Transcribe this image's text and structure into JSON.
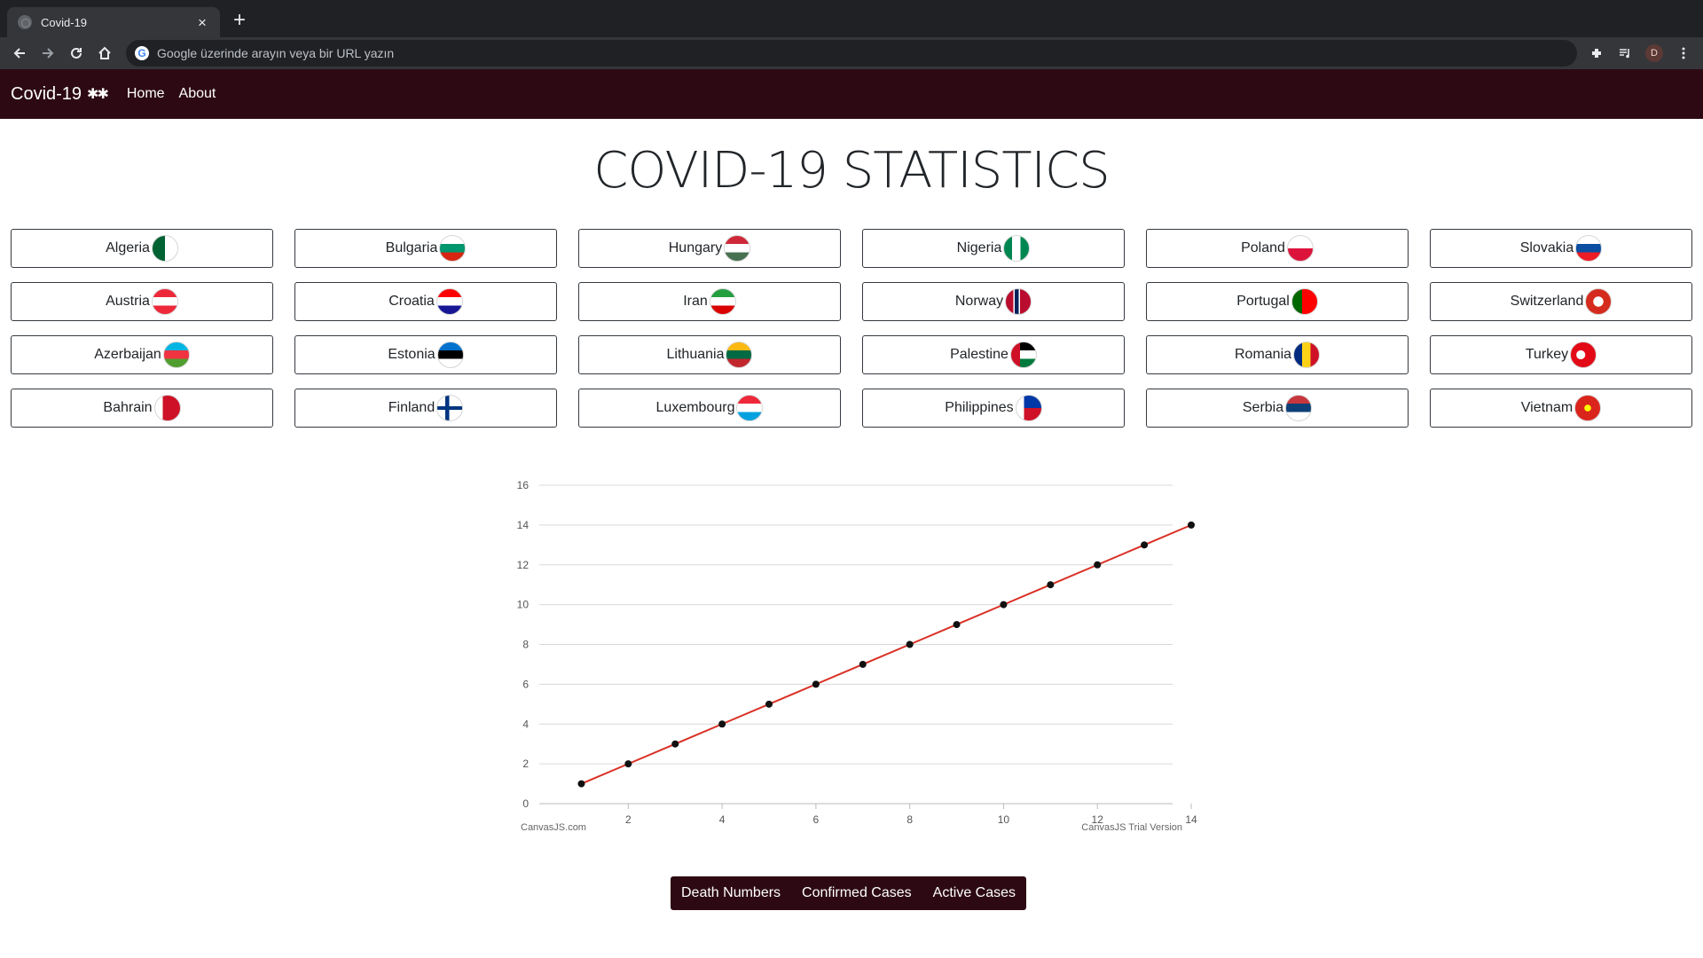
{
  "browser": {
    "tab_title": "Covid-19",
    "omnibox_placeholder": "Google üzerinde arayın veya bir URL yazın",
    "profile_initial": "D"
  },
  "site": {
    "brand": "Covid-19",
    "brand_icon": "✱✱",
    "nav": {
      "home": "Home",
      "about": "About"
    },
    "title": "COVID-19 STATISTICS"
  },
  "countries": [
    {
      "name": "Algeria",
      "flag_gradient": "linear-gradient(90deg,#006233 50%,#ffffff 50%)"
    },
    {
      "name": "Bulgaria",
      "flag_gradient": "linear-gradient(180deg,#ffffff 33%,#00966e 33%,#00966e 66%,#d62612 66%)"
    },
    {
      "name": "Hungary",
      "flag_gradient": "linear-gradient(180deg,#ce2939 33%,#ffffff 33%,#ffffff 66%,#477050 66%)"
    },
    {
      "name": "Nigeria",
      "flag_gradient": "linear-gradient(90deg,#008751 33%,#ffffff 33%,#ffffff 66%,#008751 66%)"
    },
    {
      "name": "Poland",
      "flag_gradient": "linear-gradient(180deg,#ffffff 50%,#dc143c 50%)"
    },
    {
      "name": "Slovakia",
      "flag_gradient": "linear-gradient(180deg,#ffffff 33%,#0b4ea2 33%,#0b4ea2 66%,#ee1c25 66%)"
    },
    {
      "name": "Austria",
      "flag_gradient": "linear-gradient(180deg,#ed2939 33%,#ffffff 33%,#ffffff 66%,#ed2939 66%)"
    },
    {
      "name": "Croatia",
      "flag_gradient": "linear-gradient(180deg,#ff0000 33%,#ffffff 33%,#ffffff 66%,#171796 66%)"
    },
    {
      "name": "Iran",
      "flag_gradient": "linear-gradient(180deg,#239f40 33%,#ffffff 33%,#ffffff 66%,#da0000 66%)"
    },
    {
      "name": "Norway",
      "flag_gradient": "linear-gradient(90deg,#ba0c2f 30%,#ffffff 30%,#ffffff 36%,#00205b 36%,#00205b 52%,#ffffff 52%,#ffffff 58%,#ba0c2f 58%)"
    },
    {
      "name": "Portugal",
      "flag_gradient": "linear-gradient(90deg,#006600 40%,#ff0000 40%)"
    },
    {
      "name": "Switzerland",
      "flag_gradient": "radial-gradient(circle,#ffffff 28%,#d52b1e 30%)"
    },
    {
      "name": "Azerbaijan",
      "flag_gradient": "linear-gradient(180deg,#00b5e2 33%,#ef3340 33%,#ef3340 66%,#509e2f 66%)"
    },
    {
      "name": "Estonia",
      "flag_gradient": "linear-gradient(180deg,#0072ce 33%,#000000 33%,#000000 66%,#ffffff 66%)"
    },
    {
      "name": "Lithuania",
      "flag_gradient": "linear-gradient(180deg,#fdb913 33%,#006a44 33%,#006a44 66%,#c1272d 66%)"
    },
    {
      "name": "Palestine",
      "flag_gradient": "linear-gradient(90deg,#ce1126 35%,transparent 35%),linear-gradient(180deg,#000000 33%,#ffffff 33%,#ffffff 66%,#007a3d 66%)"
    },
    {
      "name": "Romania",
      "flag_gradient": "linear-gradient(90deg,#002b7f 33%,#fcd116 33%,#fcd116 66%,#ce1126 66%)"
    },
    {
      "name": "Turkey",
      "flag_gradient": "radial-gradient(circle at 40% 50%,#ffffff 22%,#e30a17 24%)"
    },
    {
      "name": "Bahrain",
      "flag_gradient": "linear-gradient(90deg,#ffffff 30%,#ce1126 30%)"
    },
    {
      "name": "Finland",
      "flag_gradient": "linear-gradient(180deg,transparent 42%,#003580 42%,#003580 58%,transparent 58%),linear-gradient(90deg,#ffffff 32%,#003580 32%,#003580 48%,#ffffff 48%)"
    },
    {
      "name": "Luxembourg",
      "flag_gradient": "linear-gradient(180deg,#ed2939 33%,#ffffff 33%,#ffffff 66%,#00a1de 66%)"
    },
    {
      "name": "Philippines",
      "flag_gradient": "linear-gradient(90deg,#ffffff 30%,transparent 30%),linear-gradient(180deg,#0038a8 50%,#ce1126 50%)"
    },
    {
      "name": "Serbia",
      "flag_gradient": "linear-gradient(180deg,#c6363c 33%,#0c4076 33%,#0c4076 66%,#ffffff 66%)"
    },
    {
      "name": "Vietnam",
      "flag_gradient": "radial-gradient(circle,#ffff00 18%,#da251d 20%)"
    }
  ],
  "chart_data": {
    "type": "line",
    "x": [
      1,
      2,
      3,
      4,
      5,
      6,
      7,
      8,
      9,
      10,
      11,
      12,
      13,
      14
    ],
    "series": [
      {
        "values": [
          1,
          2,
          3,
          4,
          5,
          6,
          7,
          8,
          9,
          10,
          11,
          12,
          13,
          14
        ],
        "color": "#d93025"
      }
    ],
    "xlim": [
      0.5,
      14
    ],
    "ylim": [
      0,
      16
    ],
    "x_ticks": [
      2,
      4,
      6,
      8,
      10,
      12,
      14
    ],
    "y_ticks": [
      0,
      2,
      4,
      6,
      8,
      10,
      12,
      14,
      16
    ],
    "grid": true,
    "credit_left": "CanvasJS.com",
    "credit_right": "CanvasJS Trial Version"
  },
  "actions": {
    "death": "Death Numbers",
    "confirmed": "Confirmed Cases",
    "active": "Active Cases"
  },
  "colors": {
    "navbar": "#2d0a13",
    "line": "#d93025"
  }
}
